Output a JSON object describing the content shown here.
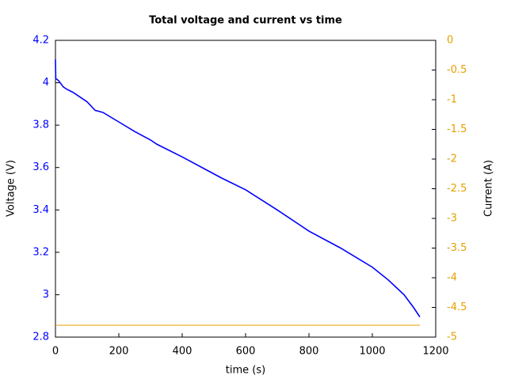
{
  "chart_data": {
    "type": "line",
    "title": "Total voltage and current vs time",
    "x_label": "time (s)",
    "y_label": "Voltage (V)",
    "y2_label": "Current (A)",
    "xlim": [
      0,
      1200
    ],
    "xticks": [
      0,
      200,
      400,
      600,
      800,
      1000,
      1200
    ],
    "ylim": [
      2.8,
      4.2
    ],
    "yticks": [
      2.8,
      3,
      3.2,
      3.4,
      3.6,
      3.8,
      4,
      4.2
    ],
    "y2lim": [
      -5,
      0
    ],
    "y2ticks": [
      -5,
      -4.5,
      -4,
      -3.5,
      -3,
      -2.5,
      -2,
      -1.5,
      -1,
      -0.5,
      0
    ],
    "y_color": "#0000ff",
    "y2_color": "#e5a000",
    "series": [
      {
        "name": "Voltage",
        "color": "#0000ff",
        "axis": "y",
        "x": [
          0,
          1,
          10,
          25,
          35,
          55,
          100,
          125,
          150,
          200,
          250,
          300,
          320,
          400,
          500,
          525,
          600,
          700,
          800,
          900,
          950,
          1000,
          1050,
          1100,
          1130,
          1150
        ],
        "values": [
          4.11,
          4.02,
          4.01,
          3.98,
          3.97,
          3.955,
          3.91,
          3.87,
          3.86,
          3.815,
          3.77,
          3.73,
          3.71,
          3.65,
          3.57,
          3.55,
          3.495,
          3.4,
          3.3,
          3.22,
          3.175,
          3.13,
          3.07,
          3.0,
          2.94,
          2.895
        ]
      },
      {
        "name": "Current",
        "color": "#e5a000",
        "axis": "y2",
        "x": [
          0,
          1150
        ],
        "values": [
          -4.8,
          -4.8
        ]
      }
    ]
  }
}
